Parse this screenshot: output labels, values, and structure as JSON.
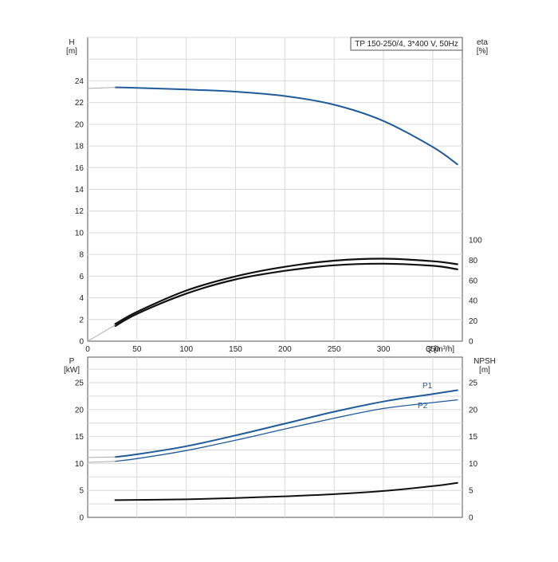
{
  "chart_data": [
    {
      "type": "line",
      "panel": "head-efficiency",
      "title_box": "TP 150-250/4, 3*400 V, 50Hz",
      "xlabel": "Q [m³/h]",
      "ylabel_left": "H",
      "ylabel_left_unit": "[m]",
      "ylabel_right": "eta",
      "ylabel_right_unit": "[%]",
      "xlim": [
        0,
        380
      ],
      "ylim_left": [
        0,
        28
      ],
      "ylim_right": [
        0,
        100
      ],
      "xticks": [
        "0",
        "50",
        "100",
        "150",
        "200",
        "250",
        "300",
        "350"
      ],
      "yticks_left": [
        "0",
        "2",
        "4",
        "6",
        "8",
        "10",
        "12",
        "14",
        "16",
        "18",
        "20",
        "22",
        "24"
      ],
      "yticks_right": [
        "0",
        "20",
        "40",
        "60",
        "80",
        "100"
      ],
      "grid": true,
      "series": [
        {
          "role": "head",
          "axis": "left",
          "color": "#1f5a99",
          "x": [
            28,
            50,
            100,
            150,
            200,
            250,
            300,
            350,
            375
          ],
          "y": [
            23.4,
            23.35,
            23.2,
            23.0,
            22.6,
            21.8,
            20.3,
            17.9,
            16.3
          ]
        },
        {
          "role": "head-extension",
          "axis": "left",
          "color": "#aaaaaa",
          "x": [
            0,
            28
          ],
          "y": [
            23.3,
            23.4
          ]
        },
        {
          "role": "efficiency-upper",
          "axis": "right",
          "color": "#111111",
          "x": [
            28,
            50,
            100,
            150,
            200,
            250,
            300,
            350,
            375
          ],
          "y": [
            17,
            29,
            50,
            64,
            73.5,
            79.5,
            81.5,
            79,
            76
          ]
        },
        {
          "role": "efficiency-lower",
          "axis": "right",
          "color": "#111111",
          "x": [
            28,
            50,
            100,
            150,
            200,
            250,
            300,
            350,
            375
          ],
          "y": [
            15,
            27,
            47,
            61,
            69.5,
            75,
            76.5,
            74.5,
            71
          ]
        },
        {
          "role": "efficiency-extension",
          "axis": "right",
          "color": "#aaaaaa",
          "x": [
            0,
            28
          ],
          "y": [
            0,
            16
          ]
        }
      ]
    },
    {
      "type": "line",
      "panel": "power-npsh",
      "ylabel_left": "P",
      "ylabel_left_unit": "[kW]",
      "ylabel_right": "NPSH",
      "ylabel_right_unit": "[m]",
      "xlim": [
        0,
        380
      ],
      "ylim_left": [
        0,
        28
      ],
      "ylim_right": [
        0,
        28
      ],
      "yticks_left": [
        "0",
        "5",
        "10",
        "15",
        "20",
        "25"
      ],
      "yticks_right": [
        "0",
        "5",
        "10",
        "15",
        "20",
        "25"
      ],
      "grid": true,
      "series": [
        {
          "name": "P1",
          "axis": "left",
          "color": "#1f5a99",
          "x": [
            28,
            50,
            100,
            150,
            200,
            250,
            300,
            350,
            375
          ],
          "y": [
            11.2,
            11.7,
            13.2,
            15.2,
            17.4,
            19.6,
            21.5,
            22.9,
            23.6
          ]
        },
        {
          "name": "P2",
          "axis": "left",
          "color": "#1f5a99",
          "x": [
            28,
            50,
            100,
            150,
            200,
            250,
            300,
            350,
            375
          ],
          "y": [
            10.4,
            10.9,
            12.4,
            14.3,
            16.4,
            18.4,
            20.2,
            21.3,
            21.8
          ]
        },
        {
          "role": "npsh",
          "axis": "right",
          "color": "#111111",
          "x": [
            28,
            100,
            150,
            200,
            250,
            300,
            350,
            375
          ],
          "y": [
            3.2,
            3.35,
            3.6,
            3.9,
            4.3,
            4.9,
            5.8,
            6.4
          ]
        },
        {
          "role": "p1-extension",
          "axis": "left",
          "color": "#aaaaaa",
          "x": [
            0,
            28
          ],
          "y": [
            11.1,
            11.2
          ]
        },
        {
          "role": "p2-extension",
          "axis": "left",
          "color": "#aaaaaa",
          "x": [
            0,
            28
          ],
          "y": [
            10.2,
            10.4
          ]
        }
      ]
    }
  ]
}
